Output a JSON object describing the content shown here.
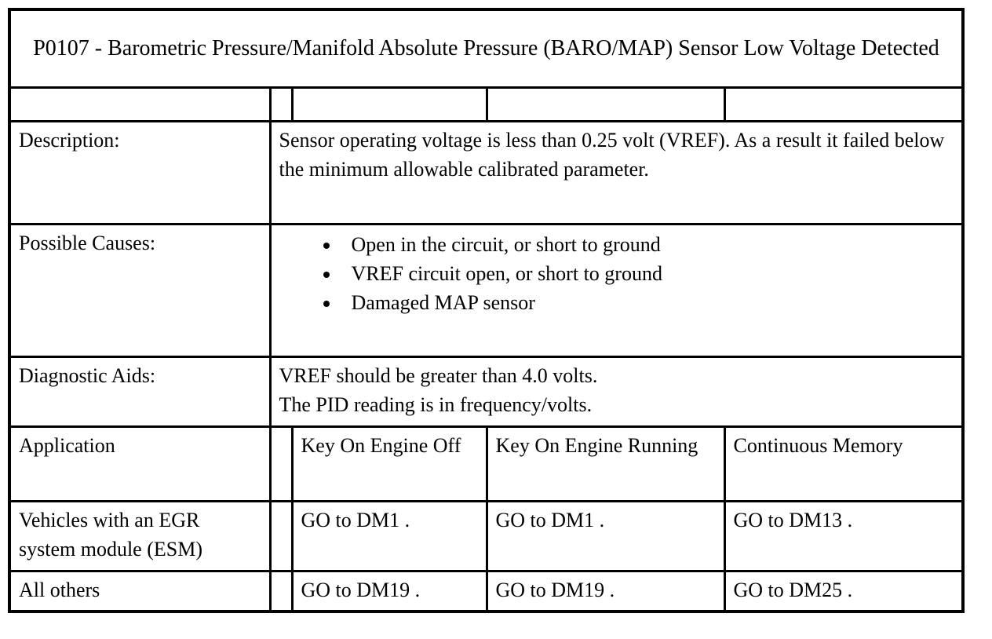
{
  "page": {
    "background": "#ffffff",
    "border_color": "#000000",
    "text_color": "#000000"
  },
  "table": {
    "title": "P0107 - Barometric Pressure/Manifold Absolute Pressure (BARO/MAP) Sensor Low Voltage Detected",
    "description": {
      "label": "Description:",
      "text": "Sensor operating voltage is less than 0.25 volt (VREF). As a result it failed below the minimum allowable calibrated parameter."
    },
    "possible_causes": {
      "label": "Possible Causes:",
      "items": [
        "Open in the circuit, or short to ground",
        "VREF circuit open, or short to ground",
        "Damaged MAP sensor"
      ]
    },
    "diagnostic_aids": {
      "label": "Diagnostic Aids:",
      "lines": [
        "VREF should be greater than 4.0 volts.",
        "The PID reading is in frequency/volts."
      ]
    },
    "matrix": {
      "headers": [
        "Application",
        "Key On Engine Off",
        "Key On Engine Running",
        "Continuous Memory"
      ],
      "rows": [
        {
          "label": "Vehicles with an EGR system module (ESM)",
          "cells": [
            "GO to DM1 .",
            "GO to DM1 .",
            "GO to DM13 ."
          ]
        },
        {
          "label": "All others",
          "cells": [
            "GO to DM19 .",
            "GO to DM19 .",
            "GO to DM25 ."
          ]
        }
      ]
    }
  }
}
